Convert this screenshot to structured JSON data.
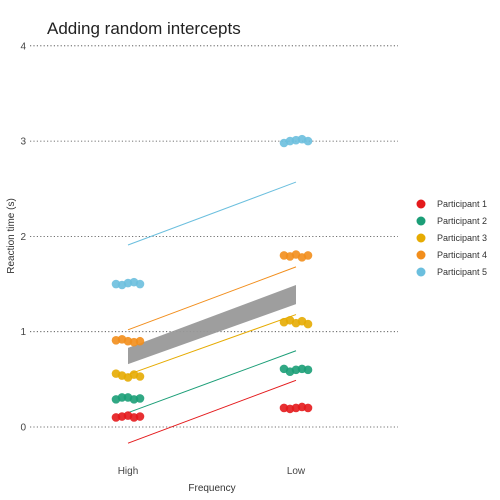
{
  "chart_data": {
    "type": "scatter",
    "title": "Adding random intercepts",
    "xlabel": "Frequency",
    "ylabel": "Reaction time (s)",
    "categories": [
      "High",
      "Low"
    ],
    "ylim": [
      -0.35,
      4.05
    ],
    "yticks": [
      0,
      1,
      2,
      3,
      4
    ],
    "grid": "horizontal dotted",
    "legend_position": "right",
    "series": [
      {
        "name": "Participant 1",
        "color": "#e41a1c",
        "points": {
          "High": [
            0.1,
            0.11,
            0.12,
            0.1,
            0.11
          ],
          "Low": [
            0.2,
            0.19,
            0.2,
            0.21,
            0.2
          ]
        },
        "line": [
          -0.17,
          0.49
        ]
      },
      {
        "name": "Participant 2",
        "color": "#1b9e77",
        "points": {
          "High": [
            0.29,
            0.31,
            0.31,
            0.29,
            0.3
          ],
          "Low": [
            0.61,
            0.58,
            0.6,
            0.61,
            0.6
          ]
        },
        "line": [
          0.15,
          0.8
        ]
      },
      {
        "name": "Participant 3",
        "color": "#e6ab02",
        "points": {
          "High": [
            0.56,
            0.54,
            0.52,
            0.55,
            0.53
          ],
          "Low": [
            1.1,
            1.12,
            1.09,
            1.11,
            1.08
          ]
        },
        "line": [
          0.55,
          1.18
        ]
      },
      {
        "name": "Participant 4",
        "color": "#f28e1c",
        "points": {
          "High": [
            0.91,
            0.92,
            0.9,
            0.89,
            0.9
          ],
          "Low": [
            1.8,
            1.79,
            1.81,
            1.78,
            1.8
          ]
        },
        "line": [
          1.02,
          1.68
        ]
      },
      {
        "name": "Participant 5",
        "color": "#6bbfde",
        "points": {
          "High": [
            1.5,
            1.49,
            1.51,
            1.52,
            1.5
          ],
          "Low": [
            2.98,
            3.0,
            3.01,
            3.02,
            3.0
          ]
        },
        "line": [
          1.91,
          2.57
        ]
      }
    ],
    "ribbon": {
      "color": "#999999",
      "lower": [
        0.66,
        1.29
      ],
      "upper": [
        0.83,
        1.49
      ]
    }
  }
}
